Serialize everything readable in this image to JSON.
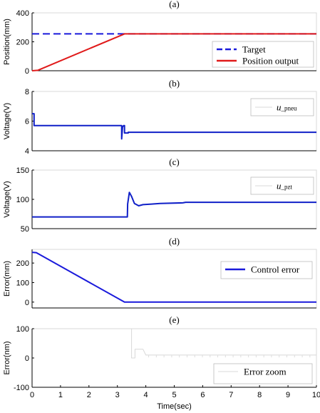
{
  "chart_data": [
    {
      "id": "a",
      "type": "line",
      "title": "(a)",
      "ylabel": "Position(mm)",
      "xlim": [
        0,
        10
      ],
      "ylim": [
        0,
        400
      ],
      "yticks": [
        "0",
        "200",
        "400"
      ],
      "xticks": [],
      "legend": {
        "placement": "bottom-right",
        "entries": [
          "Target",
          "Position output"
        ]
      },
      "series": [
        {
          "name": "Target",
          "color": "#1a1adb",
          "dash": true,
          "x": [
            0,
            3.25,
            10
          ],
          "y": [
            255,
            255,
            255
          ]
        },
        {
          "name": "Position output",
          "color": "#e01a1a",
          "x": [
            0,
            0.2,
            3.25,
            10
          ],
          "y": [
            0,
            3,
            255,
            255
          ]
        }
      ]
    },
    {
      "id": "b",
      "type": "line",
      "title": "(b)",
      "ylabel": "Voltage(V)",
      "xlim": [
        0,
        10
      ],
      "ylim": [
        4,
        8
      ],
      "yticks": [
        "4",
        "6",
        "8"
      ],
      "xticks": [],
      "legend": {
        "placement": "top-right",
        "main": "u",
        "sub": "_pneu"
      },
      "series": [
        {
          "name": "u_pneu",
          "color": "#1020c8",
          "x": [
            0,
            0.07,
            0.07,
            3.15,
            3.15,
            3.18,
            3.22,
            3.25,
            3.25,
            3.38,
            3.38,
            10
          ],
          "y": [
            6.5,
            6.5,
            5.7,
            5.7,
            4.8,
            5.6,
            5.7,
            5.7,
            5.2,
            5.2,
            5.25,
            5.25
          ]
        }
      ]
    },
    {
      "id": "c",
      "type": "line",
      "title": "(c)",
      "ylabel": "Voltage(V)",
      "xlim": [
        0,
        10
      ],
      "ylim": [
        50,
        150
      ],
      "yticks": [
        "50",
        "100",
        "150"
      ],
      "xticks": [],
      "legend": {
        "placement": "top-right",
        "main": "u",
        "sub": "_pzt"
      },
      "series": [
        {
          "name": "u_pzt",
          "color": "#1020c8",
          "x": [
            0,
            3.35,
            3.36,
            3.42,
            3.5,
            3.6,
            3.75,
            3.9,
            4.2,
            4.5,
            5.3,
            5.4,
            10
          ],
          "y": [
            70,
            70,
            92,
            112,
            105,
            93,
            89,
            91,
            92,
            93,
            94,
            95,
            95
          ]
        }
      ]
    },
    {
      "id": "d",
      "type": "line",
      "title": "(d)",
      "ylabel": "Error(mm)",
      "xlim": [
        0,
        10
      ],
      "ylim": [
        -30,
        270
      ],
      "yticks": [
        "0",
        "100",
        "200"
      ],
      "xticks": [],
      "legend": {
        "placement": "right",
        "entries": [
          "Control error"
        ]
      },
      "series": [
        {
          "name": "Control error",
          "color": "#1a1adb",
          "x": [
            0,
            0.15,
            3.25,
            10
          ],
          "y": [
            255,
            253,
            0,
            0
          ]
        }
      ]
    },
    {
      "id": "e",
      "type": "line",
      "title": "(e)",
      "ylabel": "Error(nm)",
      "xlabel": "Time(sec)",
      "xlim": [
        0,
        10
      ],
      "ylim": [
        -100,
        100
      ],
      "yticks": [
        "-100",
        "0",
        "100"
      ],
      "xticks": [
        "0",
        "1",
        "2",
        "3",
        "4",
        "5",
        "6",
        "7",
        "8",
        "9",
        "10"
      ],
      "legend": {
        "placement": "bottom-right",
        "entries": [
          "Error zoom"
        ]
      },
      "series": [
        {
          "name": "Error zoom",
          "color": "#d8d8d8",
          "x": [
            3.5,
            3.5,
            3.62,
            3.62,
            3.9,
            4.0,
            10
          ],
          "y": [
            100,
            0,
            0,
            30,
            30,
            10,
            10
          ]
        }
      ]
    }
  ]
}
